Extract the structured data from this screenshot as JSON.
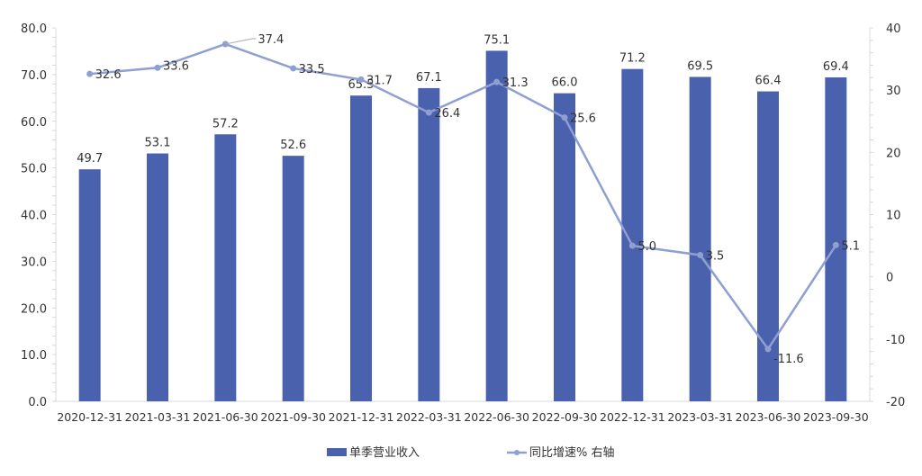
{
  "chart_data": {
    "type": "bar+line",
    "categories": [
      "2020-12-31",
      "2021-03-31",
      "2021-06-30",
      "2021-09-30",
      "2021-12-31",
      "2022-03-31",
      "2022-06-30",
      "2022-09-30",
      "2022-12-31",
      "2023-03-31",
      "2023-06-30",
      "2023-09-30"
    ],
    "series": [
      {
        "name": "单季营业收入",
        "type": "bar",
        "axis": "left",
        "color": "#4a62ad",
        "values": [
          49.7,
          53.1,
          57.2,
          52.6,
          65.5,
          67.1,
          75.1,
          66.0,
          71.2,
          69.5,
          66.4,
          69.4
        ],
        "labels": [
          "49.7",
          "53.1",
          "57.2",
          "52.6",
          "65.5",
          "67.1",
          "75.1",
          "66.0",
          "71.2",
          "69.5",
          "66.4",
          "69.4"
        ]
      },
      {
        "name": "同比增速% 右轴",
        "type": "line",
        "axis": "right",
        "color": "#8f9fd2",
        "values": [
          32.6,
          33.6,
          37.4,
          33.5,
          31.7,
          26.4,
          31.3,
          25.6,
          5.0,
          3.5,
          -11.6,
          5.1
        ],
        "labels": [
          "32.6",
          "33.6",
          "37.4",
          "33.5",
          "31.7",
          "26.4",
          "31.3",
          "25.6",
          "5.0",
          "3.5",
          "-11.6",
          "5.1"
        ]
      }
    ],
    "y_left": {
      "min": 0,
      "max": 80,
      "step": 10,
      "ticks": [
        "0.0",
        "10.0",
        "20.0",
        "30.0",
        "40.0",
        "50.0",
        "60.0",
        "70.0",
        "80.0"
      ]
    },
    "y_right": {
      "min": -20,
      "max": 40,
      "step": 10,
      "ticks": [
        "-20",
        "-10",
        "0",
        "10",
        "20",
        "30",
        "40"
      ]
    },
    "grid": false,
    "legend": "bottom",
    "title": ""
  }
}
